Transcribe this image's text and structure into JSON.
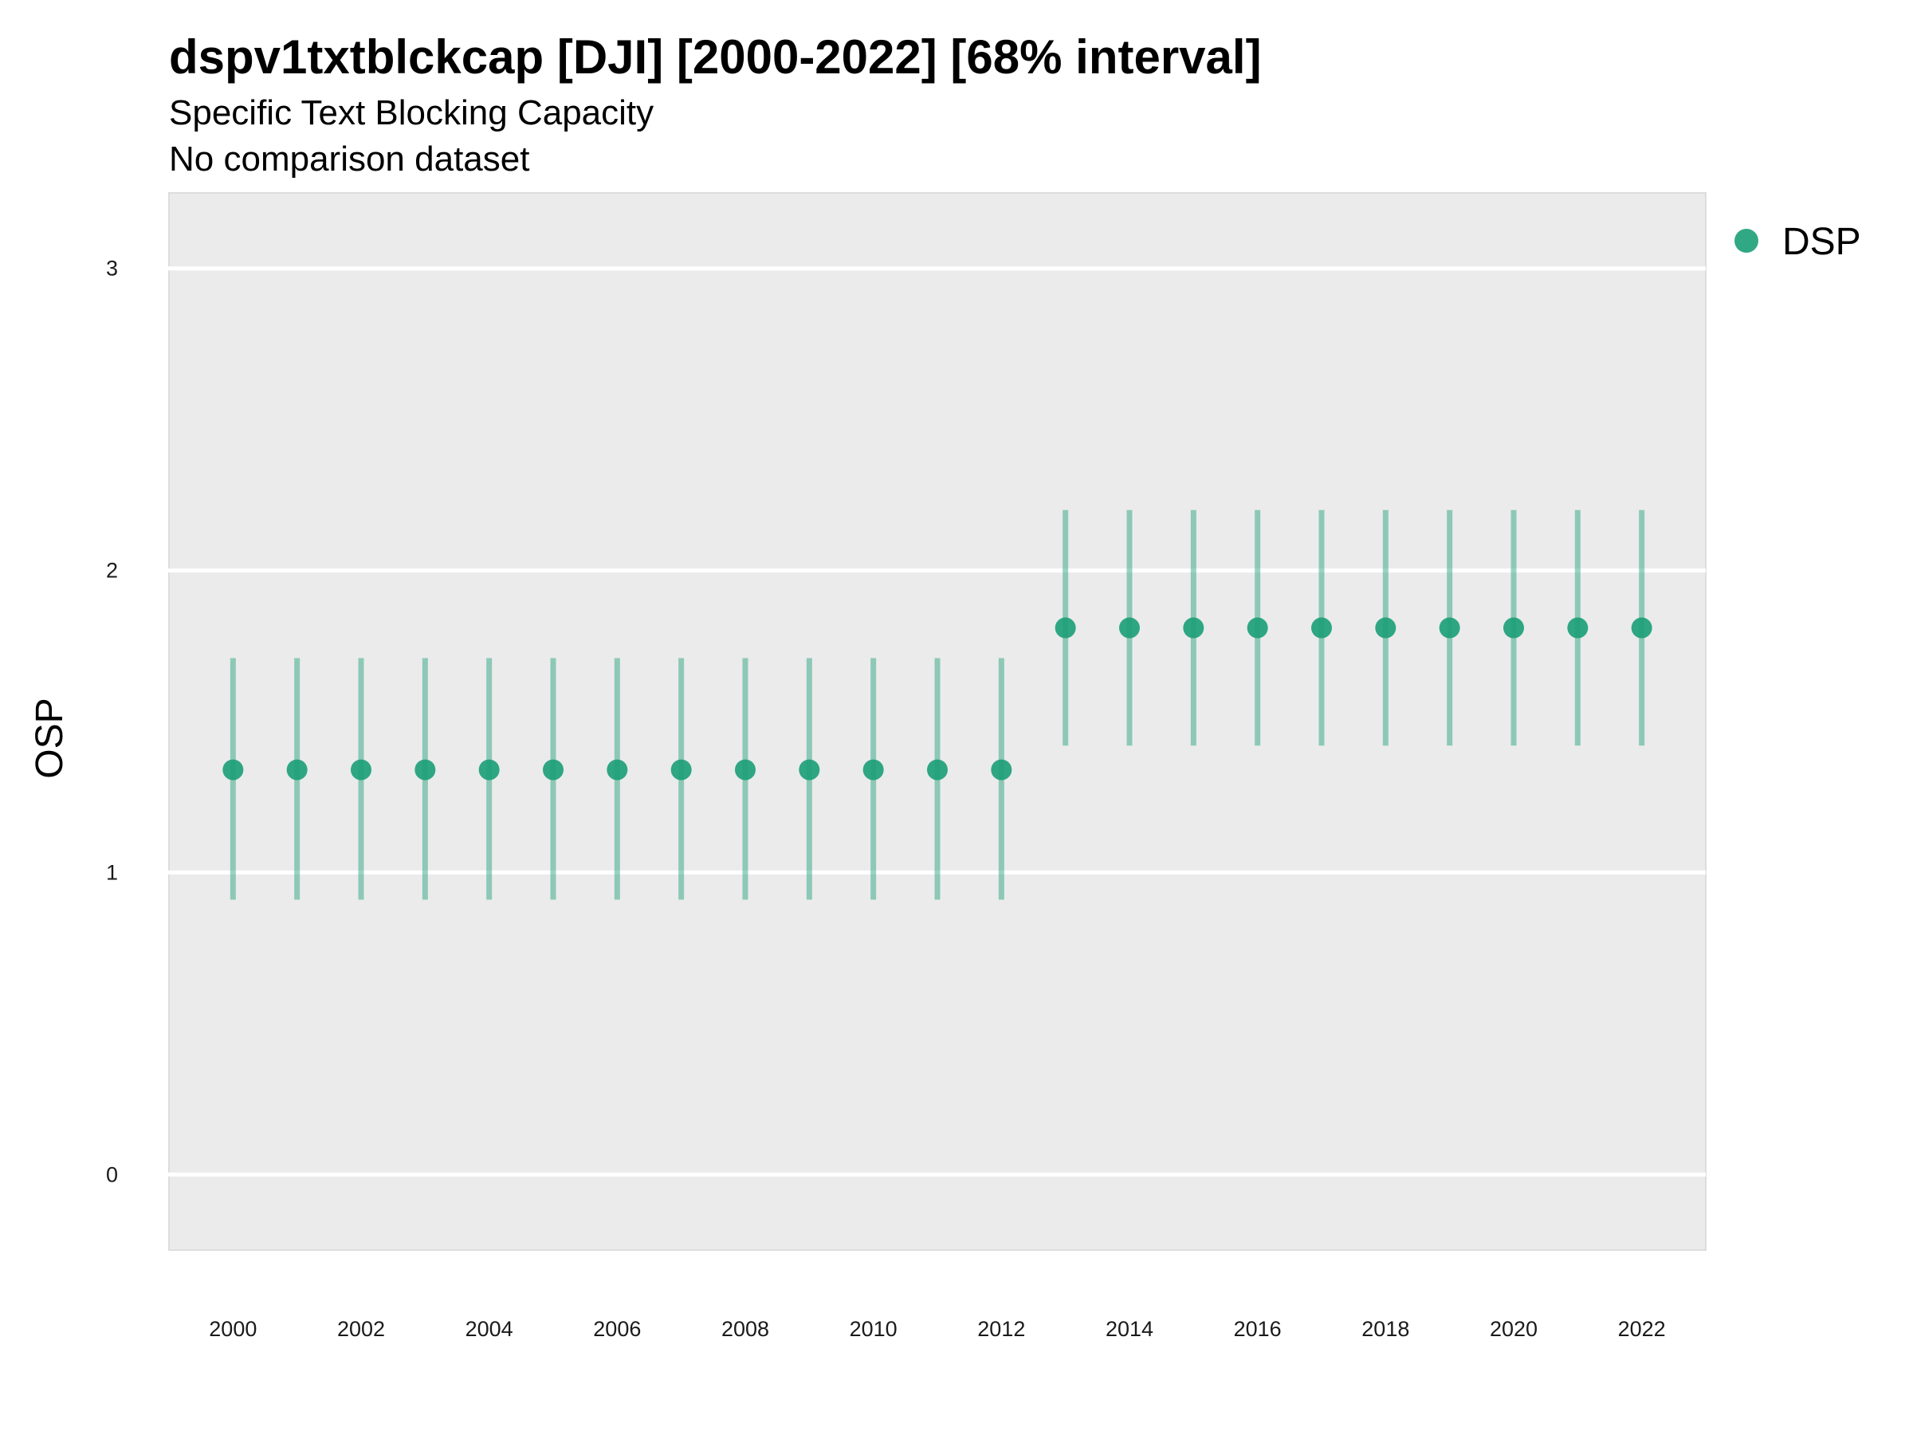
{
  "chart_data": {
    "type": "scatter",
    "title": "dspv1txtblckcap [DJI] [2000-2022] [68% interval]",
    "subtitle_lines": [
      "Specific Text Blocking Capacity",
      "No comparison dataset"
    ],
    "xlabel": "",
    "ylabel": "OSP",
    "ylim": [
      -0.25,
      3.25
    ],
    "xlim": [
      1999,
      2023
    ],
    "yticks": [
      0,
      1,
      2,
      3
    ],
    "xticks": [
      2000,
      2002,
      2004,
      2006,
      2008,
      2010,
      2012,
      2014,
      2016,
      2018,
      2020,
      2022
    ],
    "grid": true,
    "legend_position": "right",
    "series": [
      {
        "name": "DSP",
        "color": "#1b9e77",
        "points": [
          {
            "x": 2000,
            "y": 1.34,
            "lo": 0.91,
            "hi": 1.71
          },
          {
            "x": 2001,
            "y": 1.34,
            "lo": 0.91,
            "hi": 1.71
          },
          {
            "x": 2002,
            "y": 1.34,
            "lo": 0.91,
            "hi": 1.71
          },
          {
            "x": 2003,
            "y": 1.34,
            "lo": 0.91,
            "hi": 1.71
          },
          {
            "x": 2004,
            "y": 1.34,
            "lo": 0.91,
            "hi": 1.71
          },
          {
            "x": 2005,
            "y": 1.34,
            "lo": 0.91,
            "hi": 1.71
          },
          {
            "x": 2006,
            "y": 1.34,
            "lo": 0.91,
            "hi": 1.71
          },
          {
            "x": 2007,
            "y": 1.34,
            "lo": 0.91,
            "hi": 1.71
          },
          {
            "x": 2008,
            "y": 1.34,
            "lo": 0.91,
            "hi": 1.71
          },
          {
            "x": 2009,
            "y": 1.34,
            "lo": 0.91,
            "hi": 1.71
          },
          {
            "x": 2010,
            "y": 1.34,
            "lo": 0.91,
            "hi": 1.71
          },
          {
            "x": 2011,
            "y": 1.34,
            "lo": 0.91,
            "hi": 1.71
          },
          {
            "x": 2012,
            "y": 1.34,
            "lo": 0.91,
            "hi": 1.71
          },
          {
            "x": 2013,
            "y": 1.81,
            "lo": 1.42,
            "hi": 2.2
          },
          {
            "x": 2014,
            "y": 1.81,
            "lo": 1.42,
            "hi": 2.2
          },
          {
            "x": 2015,
            "y": 1.81,
            "lo": 1.42,
            "hi": 2.2
          },
          {
            "x": 2016,
            "y": 1.81,
            "lo": 1.42,
            "hi": 2.2
          },
          {
            "x": 2017,
            "y": 1.81,
            "lo": 1.42,
            "hi": 2.2
          },
          {
            "x": 2018,
            "y": 1.81,
            "lo": 1.42,
            "hi": 2.2
          },
          {
            "x": 2019,
            "y": 1.81,
            "lo": 1.42,
            "hi": 2.2
          },
          {
            "x": 2020,
            "y": 1.81,
            "lo": 1.42,
            "hi": 2.2
          },
          {
            "x": 2021,
            "y": 1.81,
            "lo": 1.42,
            "hi": 2.2
          },
          {
            "x": 2022,
            "y": 1.81,
            "lo": 1.42,
            "hi": 2.2
          }
        ]
      }
    ]
  }
}
